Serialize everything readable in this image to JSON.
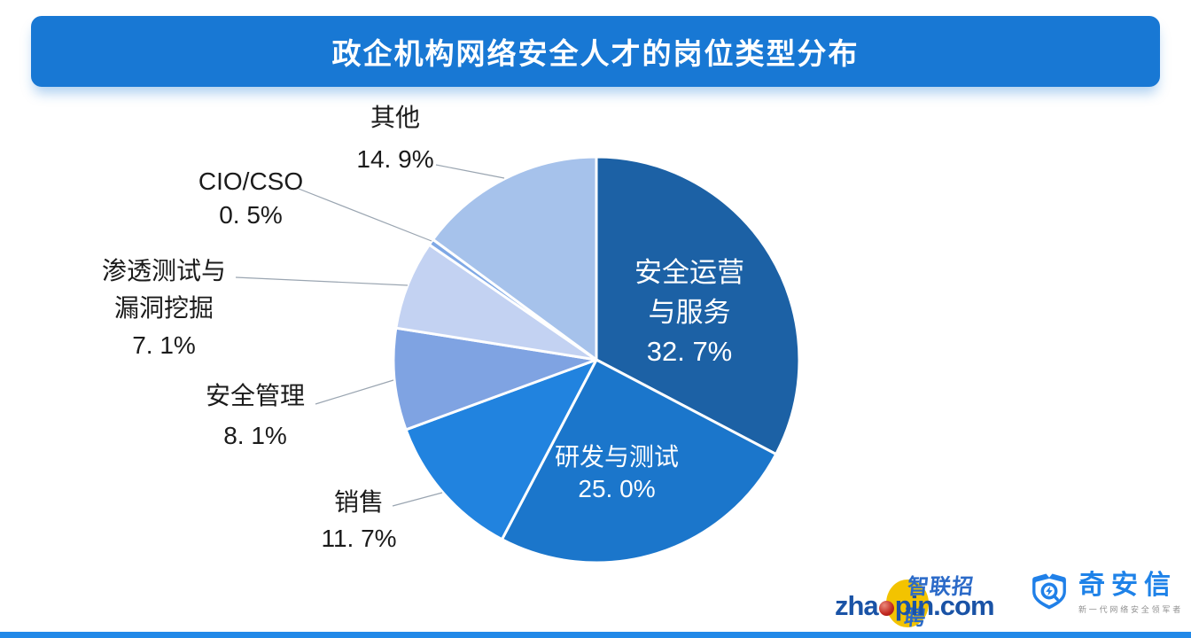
{
  "title": "政企机构网络安全人才的岗位类型分布",
  "chart_data": {
    "type": "pie",
    "title": "政企机构网络安全人才的岗位类型分布",
    "unit": "%",
    "direction": "clockwise",
    "start_angle_deg": 0,
    "legend": "none",
    "slices": [
      {
        "label": "安全运营与服务",
        "value": 32.7,
        "display": "32. 7%",
        "color": "#1C61A5",
        "label_position": "inside"
      },
      {
        "label": "研发与测试",
        "value": 25.0,
        "display": "25. 0%",
        "color": "#1B76CB",
        "label_position": "inside"
      },
      {
        "label": "销售",
        "value": 11.7,
        "display": "11. 7%",
        "color": "#2183DF",
        "label_position": "outside"
      },
      {
        "label": "安全管理",
        "value": 8.1,
        "display": "8. 1%",
        "color": "#7FA3E2",
        "label_position": "outside"
      },
      {
        "label": "渗透测试与漏洞挖掘",
        "value": 7.1,
        "display": "7. 1%",
        "color": "#C3D2F2",
        "label_position": "outside"
      },
      {
        "label": "CIO/CSO",
        "value": 0.5,
        "display": "0. 5%",
        "color": "#7FA8E5",
        "label_position": "outside"
      },
      {
        "label": "其他",
        "value": 14.9,
        "display": "14. 9%",
        "color": "#A6C2EB",
        "label_position": "outside"
      }
    ]
  },
  "inside_labels": {
    "ops": {
      "line1": "安全运营",
      "line2": "与服务",
      "value": "32. 7%"
    },
    "rd": {
      "line1": "研发与测试",
      "value": "25. 0%"
    }
  },
  "callouts": {
    "other": {
      "line1": "其他",
      "value": "14. 9%"
    },
    "cio": {
      "line1": "CIO/CSO",
      "value": "0. 5%"
    },
    "pentest": {
      "line1": "渗透测试与",
      "line2": "漏洞挖掘",
      "value": "7. 1%"
    },
    "mgmt": {
      "line1": "安全管理",
      "value": "8. 1%"
    },
    "sales": {
      "line1": "销售",
      "value": "11. 7%"
    }
  },
  "footer": {
    "zhaopin": {
      "part1": "zha",
      "part2": "pin.com",
      "cn": "智联招聘"
    },
    "qianxin": {
      "name": "奇安信",
      "tagline": "新一代网络安全领军者"
    }
  },
  "colors": {
    "banner": "#1878D4",
    "bottom_bar": "#2189E8",
    "leader_line": "#9AA5B1",
    "title_text": "#FFFFFF"
  }
}
